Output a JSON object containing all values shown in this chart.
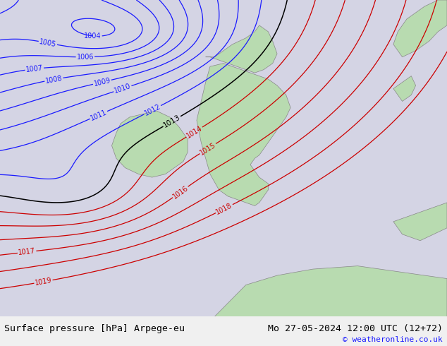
{
  "title_left": "Surface pressure [hPa] Arpege-eu",
  "title_right": "Mo 27-05-2024 12:00 UTC (12+72)",
  "copyright": "© weatheronline.co.uk",
  "bg_color": "#d4d4e4",
  "land_color": "#b8dbb0",
  "land_edge_color": "#888888",
  "fig_width": 6.34,
  "fig_height": 4.9,
  "dpi": 100,
  "bottom_bar_color": "#f0f0f0",
  "title_fontsize": 9.5,
  "copyright_fontsize": 8,
  "contour_blue_color": "#1a1aff",
  "contour_red_color": "#cc0000",
  "contour_black_color": "#000000",
  "contour_label_fontsize": 7,
  "blue_levels": [
    1004,
    1005,
    1006,
    1007,
    1008,
    1009,
    1010,
    1011,
    1012
  ],
  "black_levels": [
    1013
  ],
  "red_levels": [
    1014,
    1015,
    1016,
    1017,
    1018,
    1019
  ]
}
